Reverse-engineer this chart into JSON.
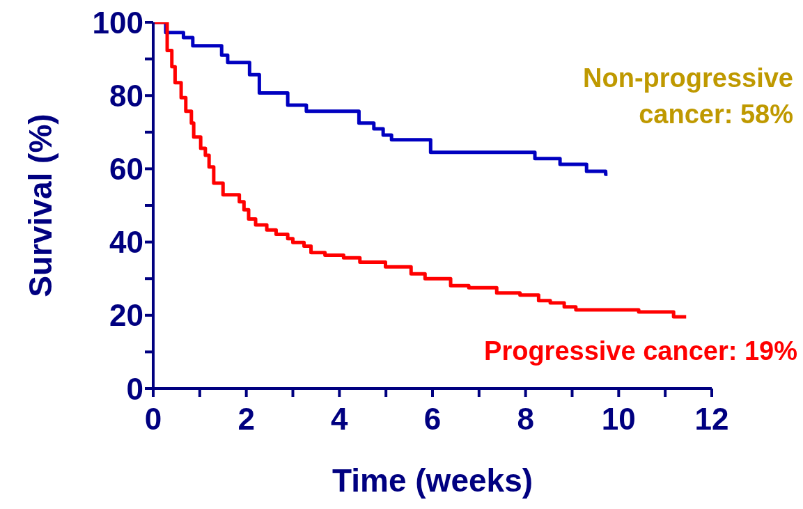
{
  "chart_data": {
    "type": "step",
    "xlabel": "Time (weeks)",
    "ylabel": "Survival (%)",
    "xlim": [
      0,
      12
    ],
    "xticks": [
      0,
      {
        "value": 1,
        "label": null
      },
      2,
      {
        "value": 3,
        "label": null
      },
      4,
      {
        "value": 5,
        "label": null
      },
      6,
      {
        "value": 7,
        "label": null
      },
      8,
      {
        "value": 9,
        "label": null
      },
      10,
      {
        "value": 11,
        "label": null
      },
      12
    ],
    "ylim": [
      0,
      100
    ],
    "yticks": [
      0,
      {
        "value": 10,
        "label": null
      },
      20,
      {
        "value": 30,
        "label": null
      },
      40,
      {
        "value": 50,
        "label": null
      },
      60,
      {
        "value": 70,
        "label": null
      },
      80,
      {
        "value": 90,
        "label": null
      },
      100
    ],
    "grid": false,
    "legend": false,
    "marker": "none",
    "line_style": "solid",
    "annotations": [
      "Non-progressive cancer: 58%",
      "Progressive cancer: 19%"
    ],
    "series": [
      {
        "color": "#0000c0",
        "x": [
          0,
          0.27,
          0.65,
          0.85,
          1.47,
          1.6,
          2.07,
          2.28,
          2.89,
          3.29,
          4.42,
          4.74,
          4.94,
          5.12,
          5.96,
          8.2,
          8.74,
          9.31,
          9.72,
          9.76
        ],
        "values": [
          100,
          97.2,
          95.8,
          93.6,
          91,
          89,
          85.7,
          80.7,
          77.4,
          75.7,
          72.5,
          70.9,
          69.2,
          67.9,
          64.5,
          62.8,
          61.2,
          59.3,
          58.5,
          58.5
        ]
      },
      {
        "color": "#ff0000",
        "x": [
          0,
          0.3,
          0.4,
          0.47,
          0.6,
          0.7,
          0.82,
          0.87,
          1.02,
          1.12,
          1.2,
          1.3,
          1.5,
          1.85,
          1.95,
          2.05,
          2.2,
          2.44,
          2.64,
          2.89,
          3.0,
          3.24,
          3.39,
          3.69,
          4.09,
          4.44,
          4.99,
          5.54,
          5.84,
          6.39,
          6.78,
          7.38,
          7.88,
          8.28,
          8.53,
          8.83,
          9.08,
          10.43,
          11.18,
          11.45
        ],
        "values": [
          100,
          92.3,
          87.9,
          83.5,
          79.4,
          75.7,
          72.5,
          68.7,
          65.6,
          63.7,
          60.5,
          56.1,
          52.9,
          51,
          48.8,
          46.3,
          44.7,
          43.3,
          42.1,
          40.9,
          39.9,
          38.9,
          37.1,
          36.4,
          35.7,
          34.5,
          33.2,
          31.3,
          30,
          28.1,
          27.5,
          26.1,
          25.5,
          24,
          23.4,
          22.3,
          21.5,
          20.9,
          19.6,
          19.6
        ]
      }
    ]
  }
}
